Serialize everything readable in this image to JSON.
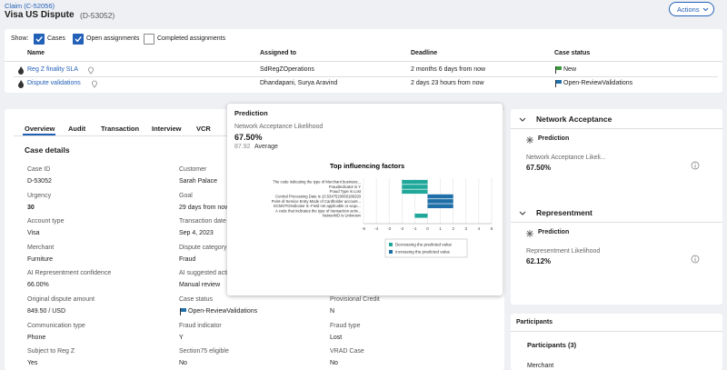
{
  "header": {
    "breadcrumb": "Claim (C-52056)",
    "title": "Visa US Dispute",
    "case_id": "(D-53052)",
    "actions": "Actions"
  },
  "filters": {
    "label": "Show:",
    "options": [
      {
        "label": "Cases",
        "checked": true
      },
      {
        "label": "Open assignments",
        "checked": true
      },
      {
        "label": "Completed assignments",
        "checked": false
      }
    ]
  },
  "assignments": {
    "columns": [
      "Name",
      "Assigned to",
      "Deadline",
      "Case status"
    ],
    "rows": [
      [
        "Reg Z finality SLA",
        "SdRegZOperations",
        "2 months 6 days from now",
        "New"
      ],
      [
        "Dispute validations",
        "Dhandapani, Surya Aravind",
        "2 days 23 hours from now",
        "Open-ReviewValidations"
      ]
    ]
  },
  "tabs": [
    "Overview",
    "Audit",
    "Transaction",
    "Interview",
    "VCR"
  ],
  "case_details": {
    "title": "Case details",
    "columns": [
      [
        {
          "label": "Case ID",
          "value": "D-53052"
        },
        {
          "label": "Urgency",
          "value": "30"
        },
        {
          "label": "Account type",
          "value": "Visa"
        },
        {
          "label": "Merchant",
          "value": "Furniture"
        },
        {
          "label": "AI Representment confidence",
          "value": "66.00%"
        },
        {
          "label": "Original dispute amount",
          "value": "849.50 / USD"
        },
        {
          "label": "Communication type",
          "value": "Phone"
        },
        {
          "label": "Subject to Reg Z",
          "value": "Yes"
        }
      ],
      [
        {
          "label": "Customer",
          "value": "Sarah Palace"
        },
        {
          "label": "Goal",
          "value": "29 days from now"
        },
        {
          "label": "Transaction date",
          "value": "Sep 4, 2023"
        },
        {
          "label": "Dispute category",
          "value": "Fraud"
        },
        {
          "label": "AI suggested acti...",
          "value": "Manual review"
        },
        {
          "label": "Case status",
          "value": "Open-ReviewValidations"
        },
        {
          "label": "Fraud indicator",
          "value": "Y"
        },
        {
          "label": "Section75 eligible",
          "value": "No"
        }
      ],
      [
        {
          "label": "Provisional Credit",
          "value": "N"
        },
        {
          "label": "Fraud type",
          "value": "Lost"
        },
        {
          "label": "VRAD Case",
          "value": "No"
        }
      ]
    ]
  },
  "prediction_popup": {
    "title": "Prediction",
    "metric_label": "Network Acceptance Likelihood",
    "metric_value": "67.50%",
    "baseline_value": "87.92",
    "baseline_label": "Average",
    "chart": {
      "type": "bar",
      "title": "Top influencing factors",
      "categories": [
        "The code indicating the type of Merchant business...",
        "FraudIndicator is Y",
        "Fraud Type is Lost",
        "Central Processing Date is 10.5347520060186293",
        "Point-of-Service Entry Mode of Cardholder account...",
        "ECMOTOIndicator is -Field not applicable or acqu...",
        "A code that indicates the type of transaction activ...",
        "NetworkID is Unknown"
      ],
      "values": [
        -2,
        -2,
        -2,
        2,
        2,
        2,
        0,
        -1
      ],
      "xlim": [
        -5,
        5
      ],
      "xticks": [
        -5,
        -4,
        -3,
        -2,
        -1,
        0,
        1,
        2,
        3,
        4,
        5
      ],
      "series": [
        {
          "name": "Decreasing the predicted value",
          "color": "#1fa89a"
        },
        {
          "name": "Increasing the predicted value",
          "color": "#1f6fa8"
        }
      ]
    }
  },
  "side_panels": [
    {
      "title": "Network Acceptance",
      "subtitle": "Prediction",
      "label": "Network Acceptance Likeli...",
      "value": "67.50%"
    },
    {
      "title": "Representment",
      "subtitle": "Prediction",
      "label": "Representment Likelihood",
      "value": "62.12%"
    }
  ],
  "participants": {
    "title": "Participants",
    "subtitle": "Participants (3)",
    "first": "Merchant"
  }
}
